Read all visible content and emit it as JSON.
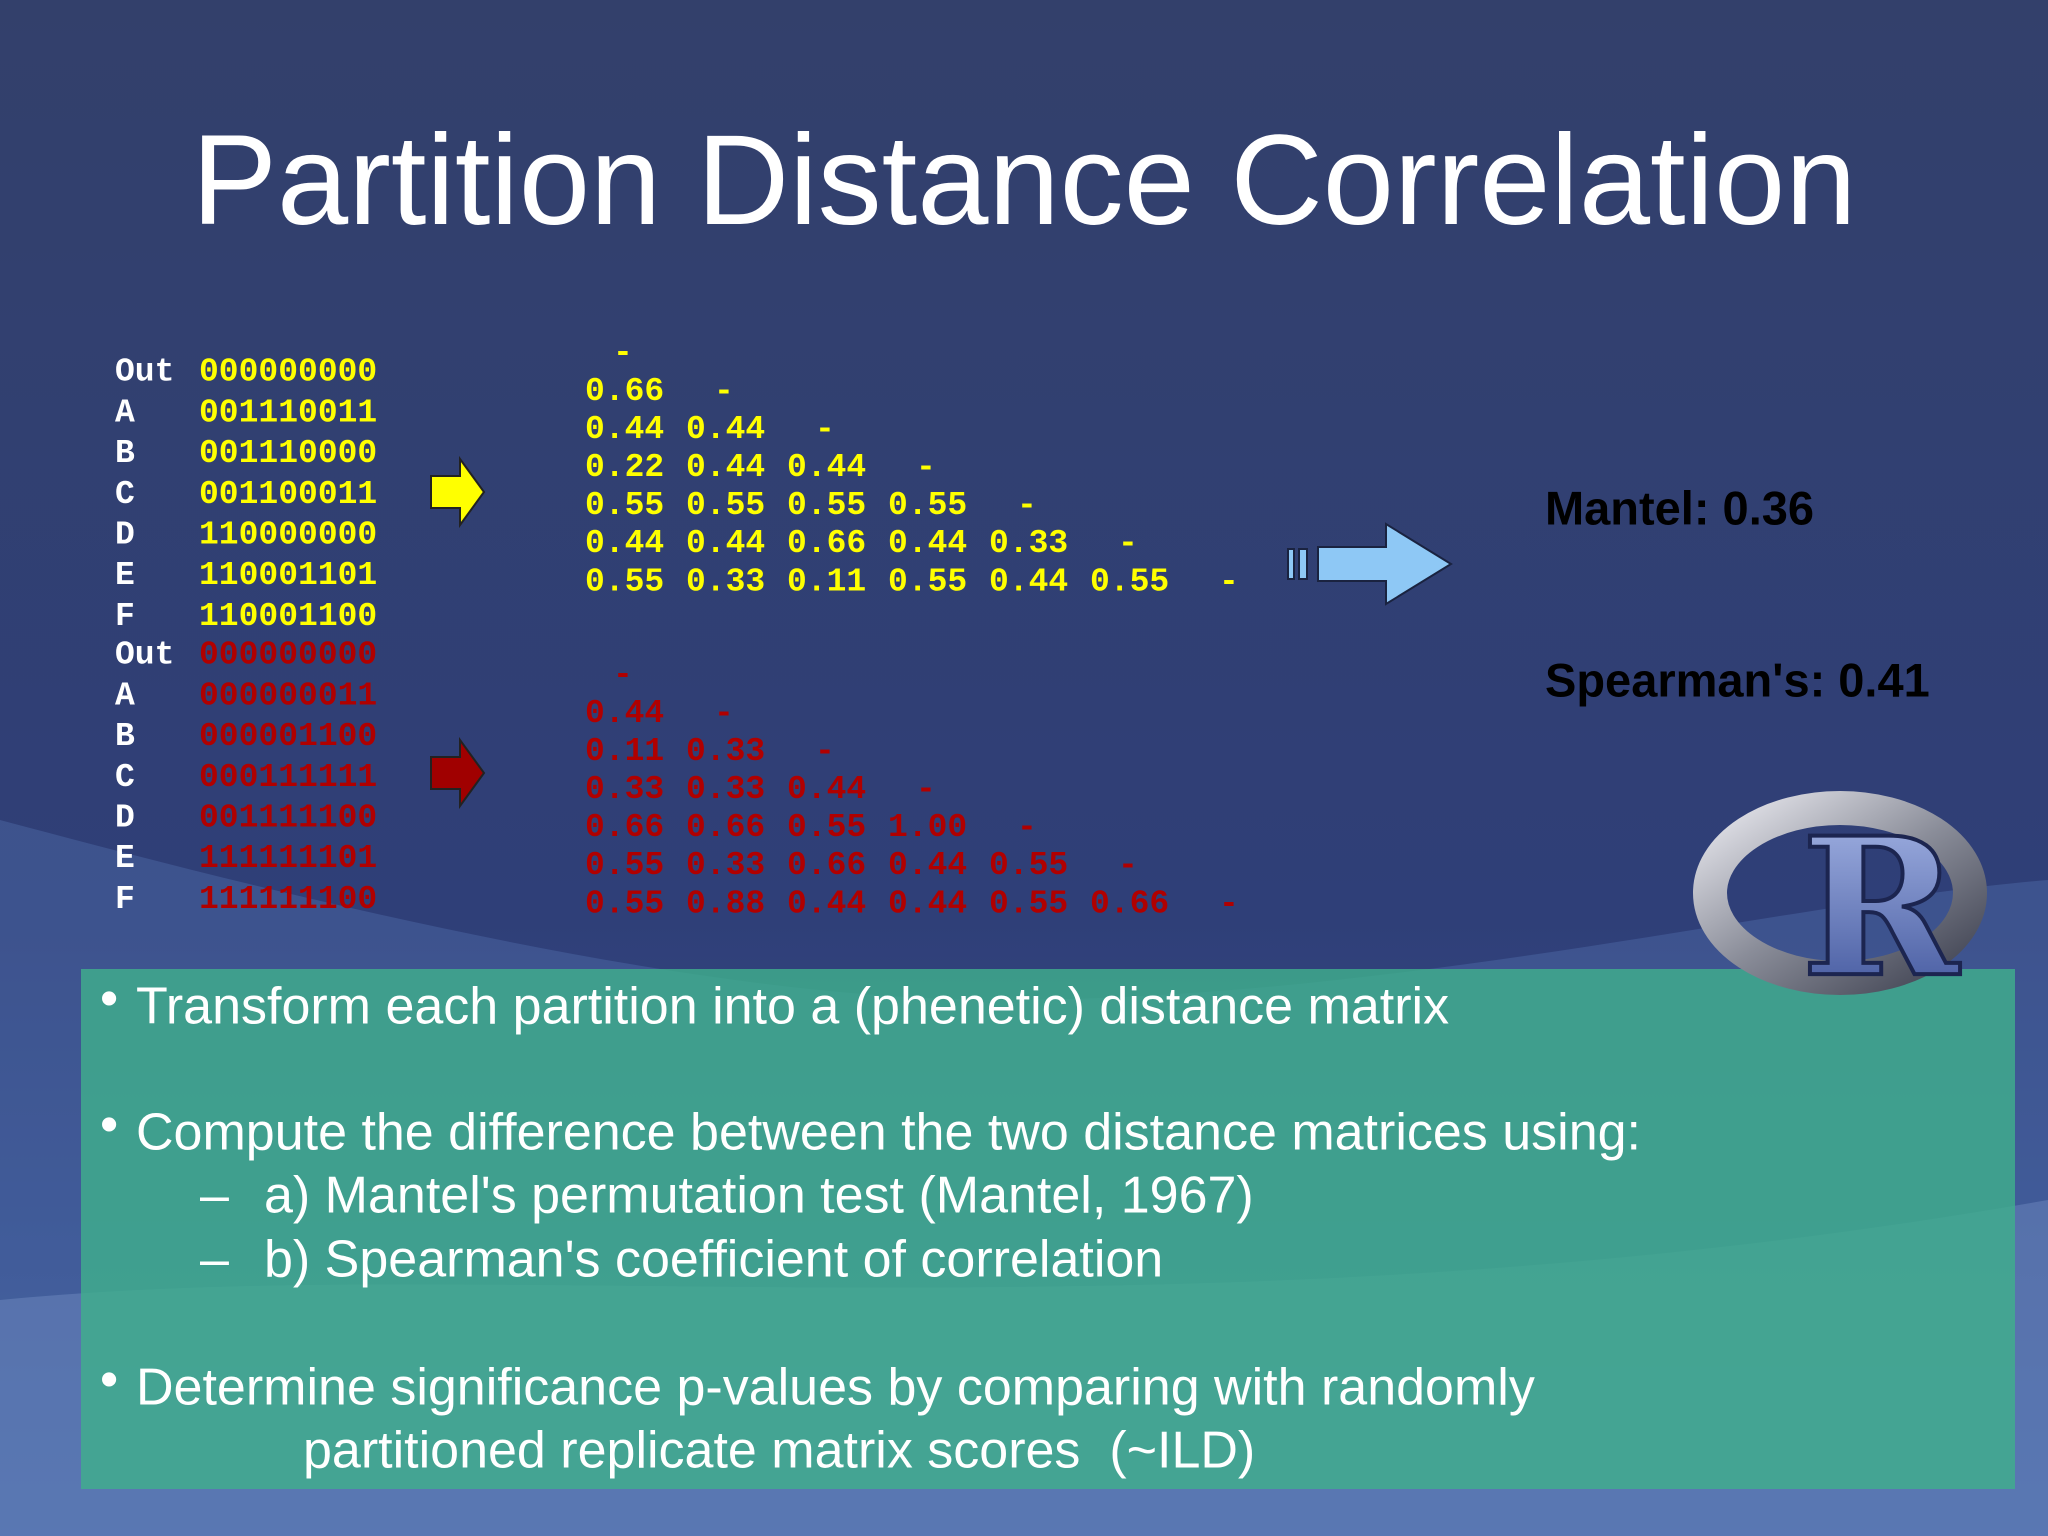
{
  "title": "Partition Distance Correlation",
  "partitions": [
    [
      [
        "Out",
        "000000000"
      ],
      [
        "A",
        "001110011"
      ],
      [
        "B",
        "001110000"
      ],
      [
        "C",
        "001100011"
      ],
      [
        "D",
        "110000000"
      ],
      [
        "E",
        "110001101"
      ],
      [
        "F",
        "110001100"
      ]
    ],
    [
      [
        "Out",
        "000000000"
      ],
      [
        "A",
        "000000011"
      ],
      [
        "B",
        "000001100"
      ],
      [
        "C",
        "000111111"
      ],
      [
        "D",
        "001111100"
      ],
      [
        "E",
        "111111101"
      ],
      [
        "F",
        "111111100"
      ]
    ]
  ],
  "matrices": [
    [
      [
        "-"
      ],
      [
        "0.66",
        "-"
      ],
      [
        "0.44",
        "0.44",
        "-"
      ],
      [
        "0.22",
        "0.44",
        "0.44",
        "-"
      ],
      [
        "0.55",
        "0.55",
        "0.55",
        "0.55",
        "-"
      ],
      [
        "0.44",
        "0.44",
        "0.66",
        "0.44",
        "0.33",
        "-"
      ],
      [
        "0.55",
        "0.33",
        "0.11",
        "0.55",
        "0.44",
        "0.55",
        "-"
      ]
    ],
    [
      [
        "-"
      ],
      [
        "0.44",
        "-"
      ],
      [
        "0.11",
        "0.33",
        "-"
      ],
      [
        "0.33",
        "0.33",
        "0.44",
        "-"
      ],
      [
        "0.66",
        "0.66",
        "0.55",
        "1.00",
        "-"
      ],
      [
        "0.55",
        "0.33",
        "0.66",
        "0.44",
        "0.55",
        "-"
      ],
      [
        "0.55",
        "0.88",
        "0.44",
        "0.44",
        "0.55",
        "0.66",
        "-"
      ]
    ]
  ],
  "results": [
    "Mantel: 0.36",
    "Spearman's: 0.41"
  ],
  "logo": "R",
  "bullets": [
    {
      "text": "Transform each partition into a (phenetic) distance matrix"
    },
    {
      "text": "Compute the difference between the two distance matrices using:",
      "items": [
        "a) Mantel's permutation test (Mantel, 1967)",
        "b) Spearman's coefficient of correlation"
      ]
    },
    {
      "text": "Determine significance p-values by comparing with randomly",
      "continuation": "partitioned replicate matrix scores  (~ILD)"
    }
  ]
}
